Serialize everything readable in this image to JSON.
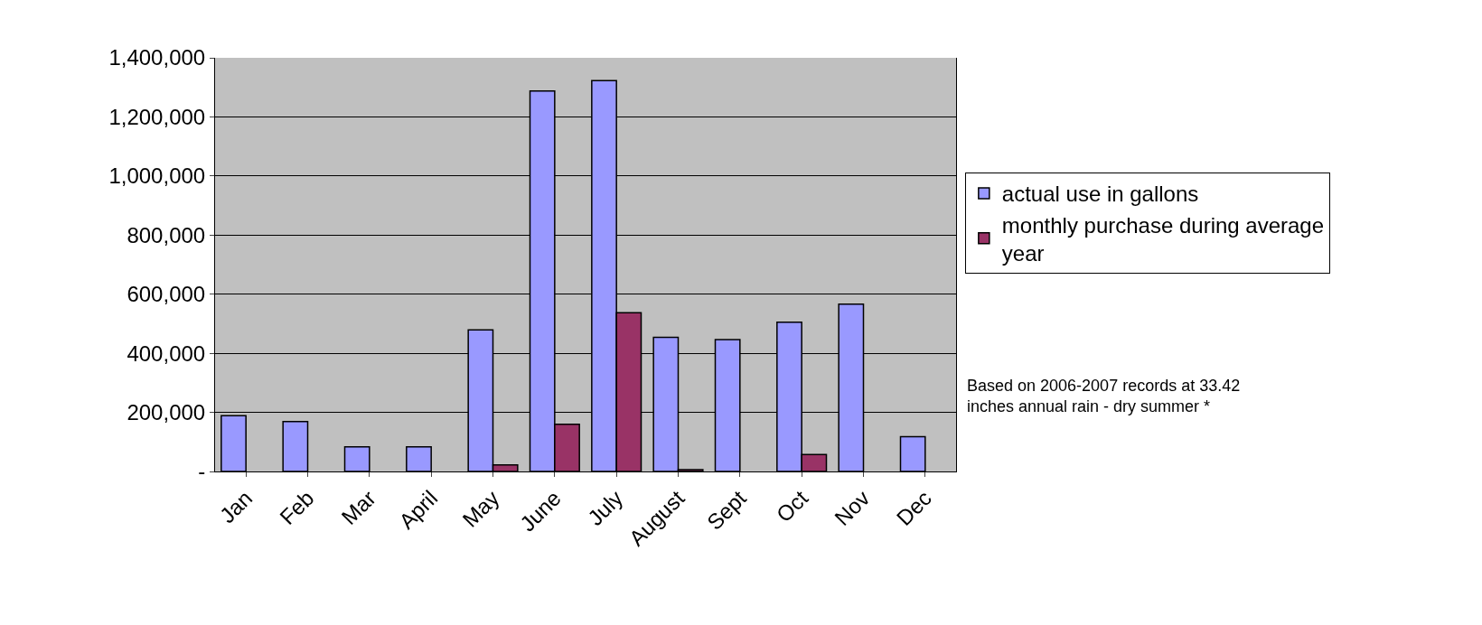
{
  "chart_data": {
    "type": "bar",
    "categories": [
      "Jan",
      "Feb",
      "Mar",
      "April",
      "May",
      "June",
      "July",
      "August",
      "Sept",
      "Oct",
      "Nov",
      "Dec"
    ],
    "series": [
      {
        "name": "actual use in gallons",
        "color": "#9999ff",
        "values": [
          189000,
          169000,
          83000,
          83000,
          479000,
          1288000,
          1323000,
          454000,
          446000,
          505000,
          566000,
          118000
        ]
      },
      {
        "name": "monthly purchase during average year",
        "color": "#993366",
        "values": [
          null,
          null,
          null,
          null,
          22000,
          160000,
          537000,
          6000,
          null,
          57000,
          null,
          null
        ]
      }
    ],
    "ylim": [
      0,
      1400000
    ],
    "yticks": [
      {
        "value": 0,
        "label": "-"
      },
      {
        "value": 200000,
        "label": "200,000"
      },
      {
        "value": 400000,
        "label": "400,000"
      },
      {
        "value": 600000,
        "label": "600,000"
      },
      {
        "value": 800000,
        "label": "800,000"
      },
      {
        "value": 1000000,
        "label": "1,000,000"
      },
      {
        "value": 1200000,
        "label": "1,200,000"
      },
      {
        "value": 1400000,
        "label": "1,400,000"
      }
    ],
    "grid": "y",
    "legend": "right",
    "annotations": [
      "Based on 2006-2007 records at 33.42 inches annual rain - dry summer *"
    ]
  }
}
